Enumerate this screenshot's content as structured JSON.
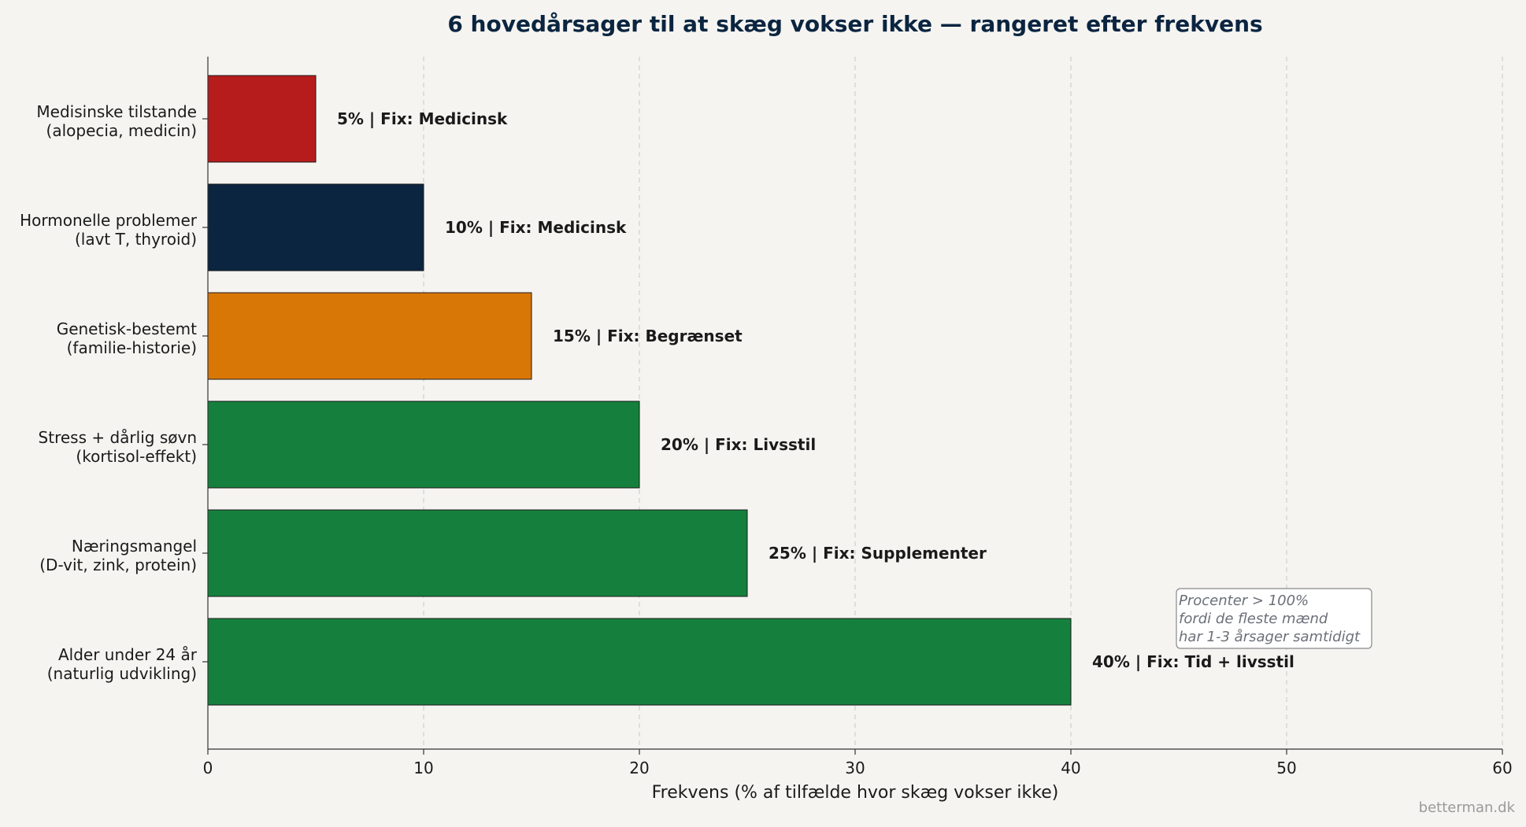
{
  "chart_data": {
    "type": "bar",
    "orientation": "horizontal",
    "title": "6 hovedårsager til at skæg vokser ikke — rangeret efter frekvens",
    "xlabel": "Frekvens (% af tilfælde hvor skæg vokser ikke)",
    "ylabel": "",
    "xlim": [
      0,
      60
    ],
    "xticks": [
      0,
      10,
      20,
      30,
      40,
      50,
      60
    ],
    "grid": "vertical dashed",
    "categories": [
      [
        "Medisinske tilstande",
        "(alopecia, medicin)"
      ],
      [
        "Hormonelle problemer",
        "(lavt T, thyroid)"
      ],
      [
        "Genetisk-bestemt",
        "(familie-historie)"
      ],
      [
        "Stress + dårlig søvn",
        "(kortisol-effekt)"
      ],
      [
        "Næringsmangel",
        "(D-vit, zink, protein)"
      ],
      [
        "Alder under 24 år",
        "(naturlig udvikling)"
      ]
    ],
    "values": [
      5,
      10,
      15,
      20,
      25,
      40
    ],
    "data_labels": [
      "5%  |  Fix: Medicinsk",
      "10%  |  Fix: Medicinsk",
      "15%  |  Fix: Begrænset",
      "20%  |  Fix: Livsstil",
      "25%  |  Fix: Supplementer",
      "40%  |  Fix: Tid + livsstil"
    ],
    "colors": [
      "#b71c1c",
      "#0b2540",
      "#d97706",
      "#15803d",
      "#15803d",
      "#15803d"
    ],
    "annotation": [
      "Procenter > 100%",
      "fordi de fleste mænd",
      "har 1-3 årsager samtidigt"
    ]
  },
  "footer": {
    "credit": "betterman.dk"
  }
}
